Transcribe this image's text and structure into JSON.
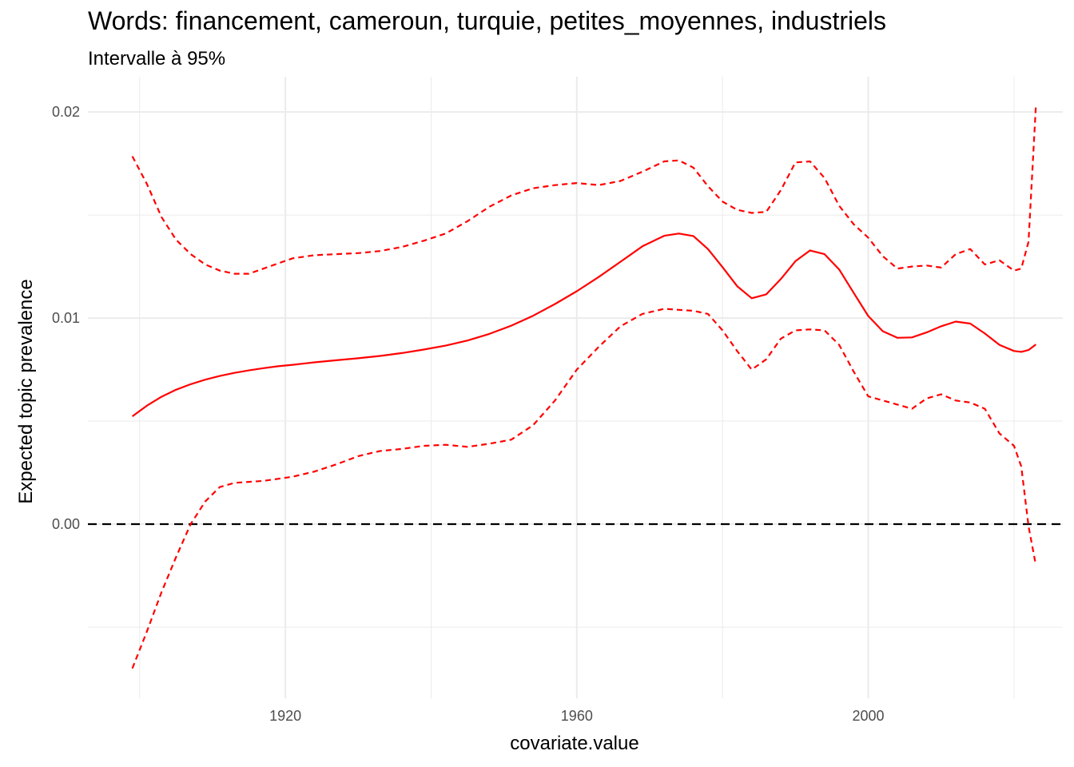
{
  "chart_data": {
    "type": "line",
    "title": "Words: financement, cameroun, turquie, petites_moyennes, industriels",
    "subtitle": "Intervalle à 95%",
    "xlabel": "covariate.value",
    "ylabel": "Expected topic prevalence",
    "xlim": [
      1892.9,
      2026.7
    ],
    "ylim": [
      -0.00845,
      0.02171
    ],
    "x_ticks": [
      1920,
      1960,
      2000
    ],
    "x_tick_labels": [
      "1920",
      "1960",
      "2000"
    ],
    "y_ticks": [
      0.0,
      0.01,
      0.02
    ],
    "y_tick_labels": [
      "0.00",
      "0.01",
      "0.02"
    ],
    "grid": true,
    "reference_line": {
      "y": 0.0,
      "style": "dashed",
      "color": "#000000"
    },
    "colors": {
      "series": "#ff0000",
      "grid": "#ebebeb"
    },
    "x": [
      1899,
      1901,
      1903,
      1905,
      1907,
      1909,
      1911,
      1913,
      1915,
      1917,
      1919,
      1921,
      1924,
      1927,
      1930,
      1933,
      1936,
      1939,
      1942,
      1945,
      1948,
      1951,
      1954,
      1957,
      1960,
      1963,
      1966,
      1969,
      1972,
      1974,
      1976,
      1978,
      1980,
      1982,
      1984,
      1986,
      1988,
      1990,
      1992,
      1994,
      1996,
      1998,
      2000,
      2002,
      2004,
      2006,
      2008,
      2010,
      2012,
      2014,
      2016,
      2018,
      2020,
      2021,
      2022,
      2023
    ],
    "series": [
      {
        "values": [
          0.00523,
          0.00575,
          0.00618,
          0.00652,
          0.00679,
          0.00701,
          0.00719,
          0.00734,
          0.00746,
          0.00757,
          0.00766,
          0.00773,
          0.00785,
          0.00795,
          0.00805,
          0.00816,
          0.0083,
          0.00847,
          0.00866,
          0.00891,
          0.00923,
          0.00963,
          0.01011,
          0.01068,
          0.0113,
          0.01199,
          0.01273,
          0.01348,
          0.01399,
          0.0141,
          0.01398,
          0.01335,
          0.01247,
          0.01155,
          0.01096,
          0.01115,
          0.01189,
          0.01276,
          0.01328,
          0.0131,
          0.01236,
          0.01122,
          0.0101,
          0.00936,
          0.00904,
          0.00906,
          0.0093,
          0.0096,
          0.00983,
          0.00973,
          0.00925,
          0.0087,
          0.0084,
          0.00836,
          0.00845,
          0.00872
        ]
      },
      {
        "values": [
          0.01785,
          0.0165,
          0.0149,
          0.0138,
          0.0131,
          0.0126,
          0.0123,
          0.01215,
          0.01215,
          0.0124,
          0.01265,
          0.0129,
          0.01305,
          0.0131,
          0.01315,
          0.01325,
          0.01345,
          0.01375,
          0.0141,
          0.0147,
          0.0154,
          0.01595,
          0.0163,
          0.01645,
          0.01655,
          0.01645,
          0.01665,
          0.0171,
          0.0176,
          0.01765,
          0.0173,
          0.0164,
          0.01565,
          0.01525,
          0.0151,
          0.01515,
          0.0162,
          0.01755,
          0.0176,
          0.0168,
          0.01545,
          0.01455,
          0.0139,
          0.013,
          0.0124,
          0.0125,
          0.01255,
          0.01245,
          0.0131,
          0.01335,
          0.0126,
          0.0128,
          0.0123,
          0.0124,
          0.0137,
          0.0203
        ]
      },
      {
        "values": [
          -0.007,
          -0.0052,
          -0.0033,
          -0.0016,
          0.0,
          0.0011,
          0.0018,
          0.002,
          0.00205,
          0.0021,
          0.0022,
          0.0023,
          0.00255,
          0.0029,
          0.0033,
          0.00355,
          0.00365,
          0.0038,
          0.00385,
          0.00375,
          0.0039,
          0.0041,
          0.0048,
          0.006,
          0.0075,
          0.0086,
          0.0096,
          0.0102,
          0.01045,
          0.0104,
          0.01035,
          0.0102,
          0.0094,
          0.0084,
          0.0075,
          0.008,
          0.009,
          0.0094,
          0.00945,
          0.0094,
          0.0087,
          0.0074,
          0.0062,
          0.006,
          0.0058,
          0.0056,
          0.0061,
          0.0063,
          0.006,
          0.0059,
          0.0056,
          0.0044,
          0.0038,
          0.0028,
          -0.0001,
          -0.002
        ]
      }
    ]
  }
}
